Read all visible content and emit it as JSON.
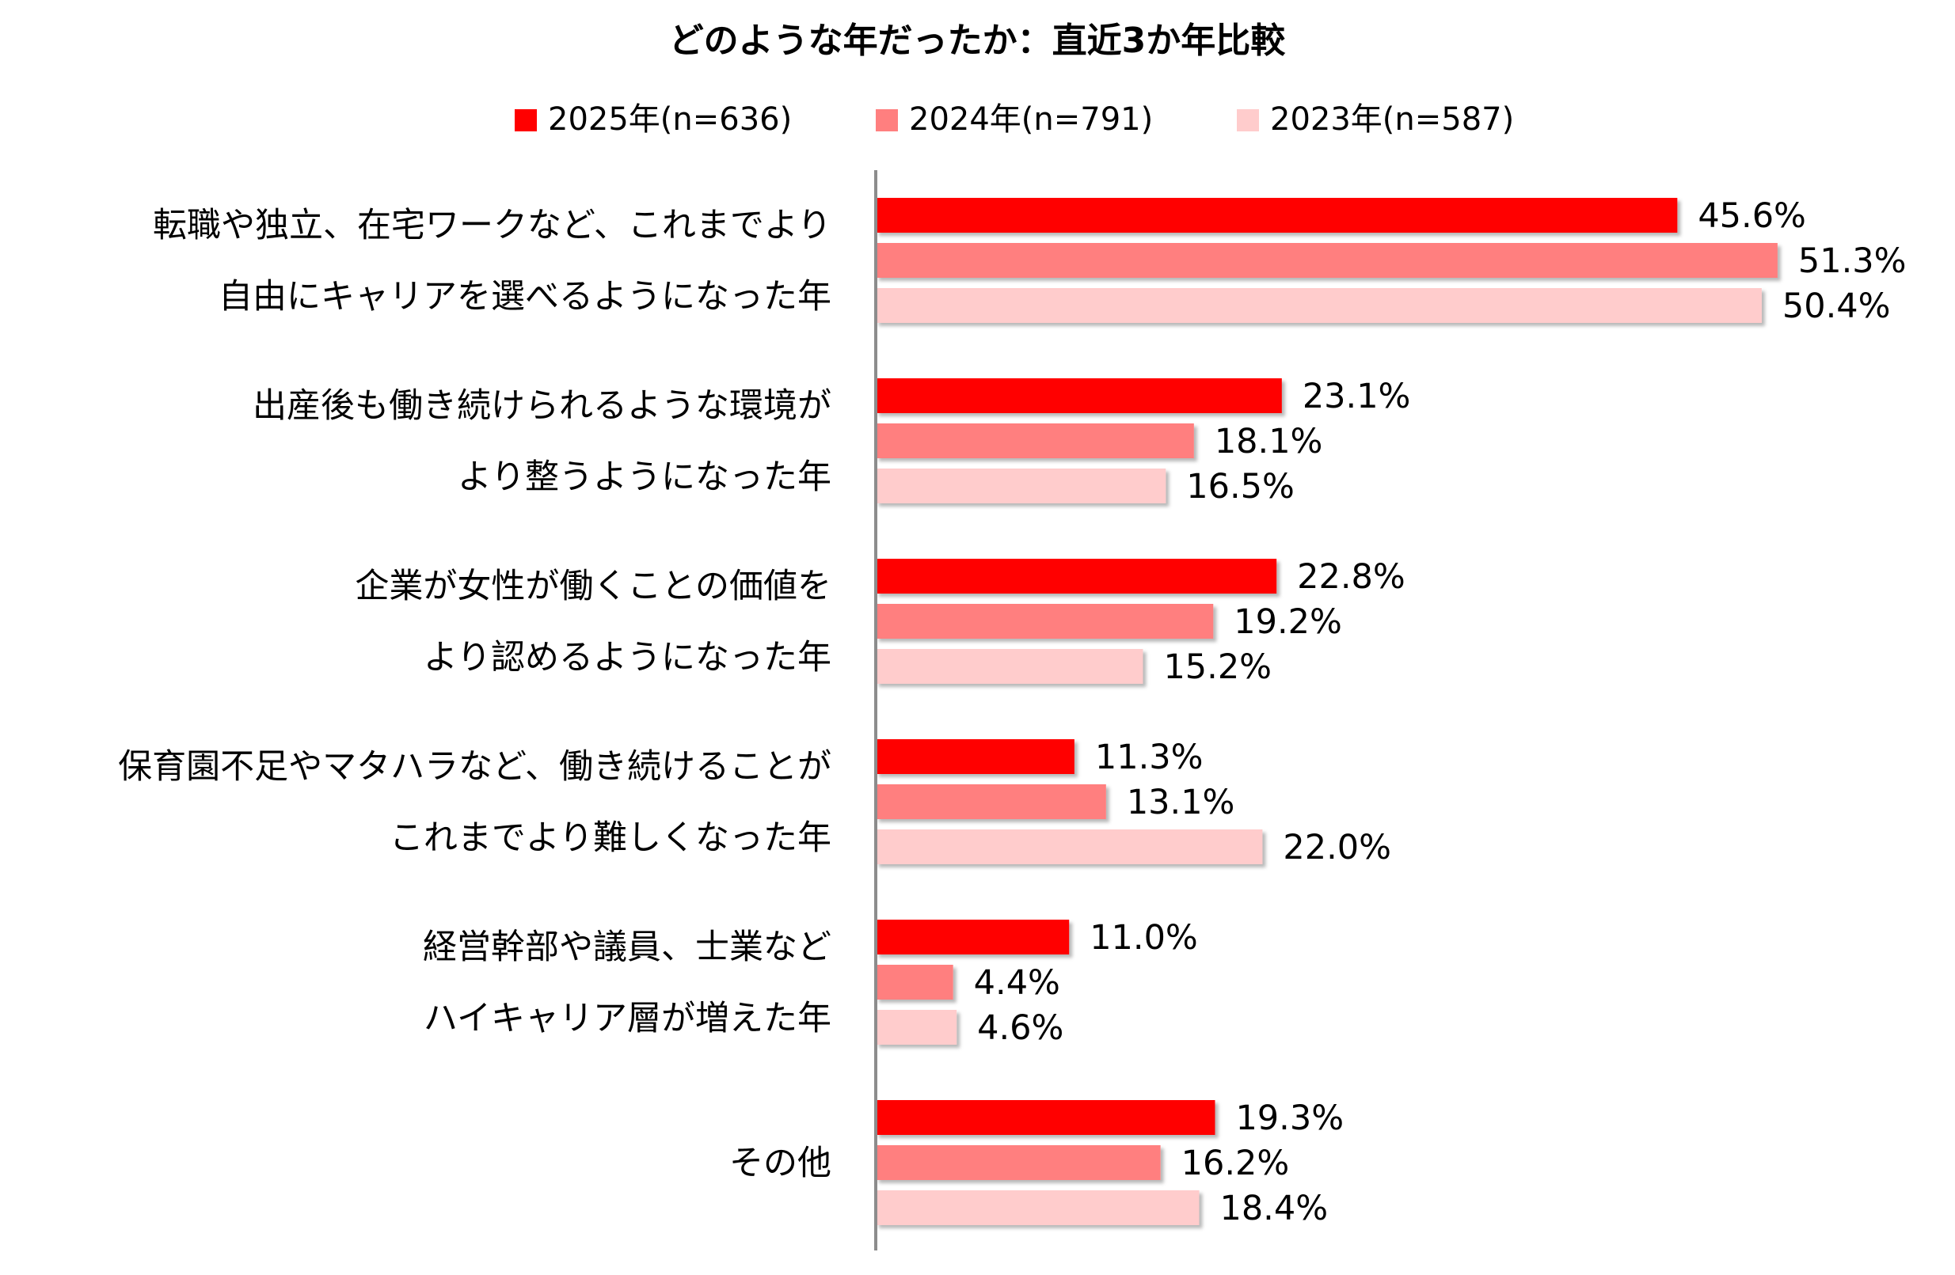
{
  "chart_data": {
    "type": "bar",
    "orientation": "horizontal",
    "title": "どのような年だったか：直近3か年比較",
    "xlabel": "",
    "ylabel": "",
    "xlim": [
      0,
      55
    ],
    "grid": false,
    "legend_position": "top",
    "categories": [
      [
        "転職や独立、在宅ワークなど、これまでより",
        "自由にキャリアを選べるようになった年"
      ],
      [
        "出産後も働き続けられるような環境が",
        "より整うようになった年"
      ],
      [
        "企業が女性が働くことの価値を",
        "より認めるようになった年"
      ],
      [
        "保育園不足やマタハラなど、働き続けることが",
        "これまでより難しくなった年"
      ],
      [
        "経営幹部や議員、士業など",
        "ハイキャリア層が増えた年"
      ],
      [
        "その他"
      ]
    ],
    "series": [
      {
        "name": "2025年(n=636)",
        "color": "#ff0000",
        "values": [
          45.6,
          23.1,
          22.8,
          11.3,
          11.0,
          19.3
        ]
      },
      {
        "name": "2024年(n=791)",
        "color": "#ff7f7f",
        "values": [
          51.3,
          18.1,
          19.2,
          13.1,
          4.4,
          16.2
        ]
      },
      {
        "name": "2023年(n=587)",
        "color": "#ffcccc",
        "values": [
          50.4,
          16.5,
          15.2,
          22.0,
          4.6,
          18.4
        ]
      }
    ],
    "value_suffix": "%",
    "value_decimals": 1
  }
}
